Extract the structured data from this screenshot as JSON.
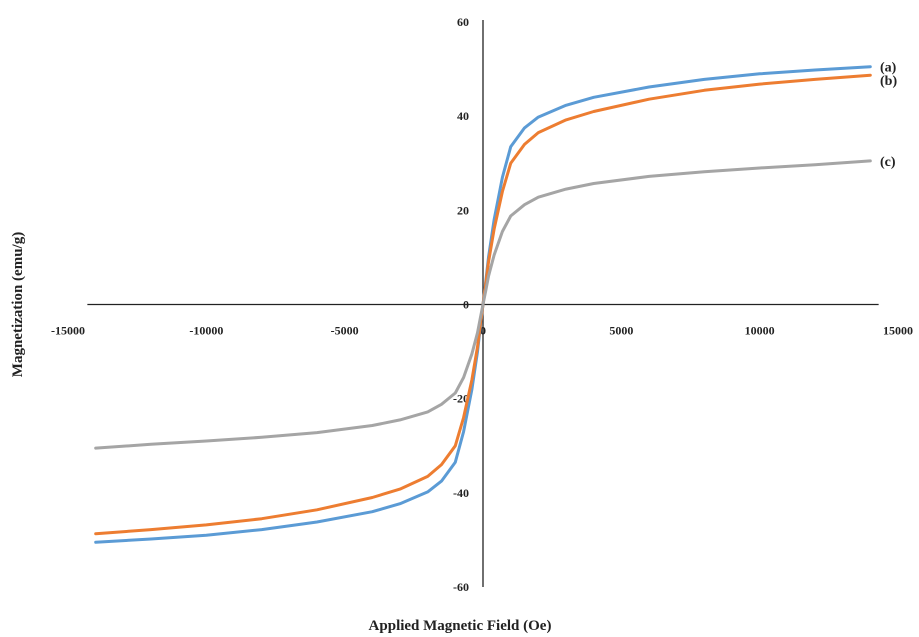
{
  "chart_data": {
    "type": "line",
    "xlabel": "Applied Magnetic Field (Oe)",
    "ylabel": "Magnetization (emu/g)",
    "xlim": [
      -15000,
      15000
    ],
    "ylim": [
      -60,
      60
    ],
    "x_ticks": [
      "-15000",
      "-10000",
      "-5000",
      "0",
      "5000",
      "10000",
      "15000"
    ],
    "y_ticks": [
      "60",
      "40",
      "20",
      "0",
      "-20",
      "-40",
      "-60"
    ],
    "grid": false,
    "legend": "none",
    "series": [
      {
        "name": "(a)",
        "color": "#5b9bd5",
        "x": [
          -14000,
          -12000,
          -10000,
          -8000,
          -6000,
          -4000,
          -3000,
          -2000,
          -1500,
          -1000,
          -700,
          -400,
          -200,
          -100,
          0,
          100,
          200,
          400,
          700,
          1000,
          1500,
          2000,
          3000,
          4000,
          6000,
          8000,
          10000,
          12000,
          14000
        ],
        "y": [
          -50.5,
          -49.8,
          -49.0,
          -47.8,
          -46.2,
          -44.0,
          -42.3,
          -39.8,
          -37.5,
          -33.5,
          -27.0,
          -18.0,
          -10.0,
          -5.0,
          0,
          5.0,
          10.0,
          18.0,
          27.0,
          33.5,
          37.5,
          39.8,
          42.3,
          44.0,
          46.2,
          47.8,
          49.0,
          49.8,
          50.5
        ]
      },
      {
        "name": "(b)",
        "color": "#ed7d31",
        "x": [
          -14000,
          -12000,
          -10000,
          -8000,
          -6000,
          -4000,
          -3000,
          -2000,
          -1500,
          -1000,
          -700,
          -400,
          -200,
          -100,
          0,
          100,
          200,
          400,
          700,
          1000,
          1500,
          2000,
          3000,
          4000,
          6000,
          8000,
          10000,
          12000,
          14000
        ],
        "y": [
          -48.7,
          -47.8,
          -46.8,
          -45.5,
          -43.6,
          -41.0,
          -39.2,
          -36.5,
          -34.0,
          -30.0,
          -24.0,
          -16.0,
          -9.0,
          -4.5,
          0,
          4.5,
          9.0,
          16.0,
          24.0,
          30.0,
          34.0,
          36.5,
          39.2,
          41.0,
          43.6,
          45.5,
          46.8,
          47.8,
          48.7
        ]
      },
      {
        "name": "(c)",
        "color": "#a5a5a5",
        "x": [
          -14000,
          -12000,
          -10000,
          -8000,
          -6000,
          -4000,
          -3000,
          -2000,
          -1500,
          -1000,
          -700,
          -400,
          -200,
          -100,
          0,
          100,
          200,
          400,
          700,
          1000,
          1500,
          2000,
          3000,
          4000,
          6000,
          8000,
          10000,
          12000,
          14000
        ],
        "y": [
          -30.5,
          -29.7,
          -29.0,
          -28.2,
          -27.2,
          -25.7,
          -24.5,
          -22.8,
          -21.2,
          -18.8,
          -15.5,
          -10.5,
          -6.0,
          -3.0,
          0,
          3.0,
          6.0,
          10.5,
          15.5,
          18.8,
          21.2,
          22.8,
          24.5,
          25.7,
          27.2,
          28.2,
          29.0,
          29.7,
          30.5
        ]
      }
    ]
  }
}
